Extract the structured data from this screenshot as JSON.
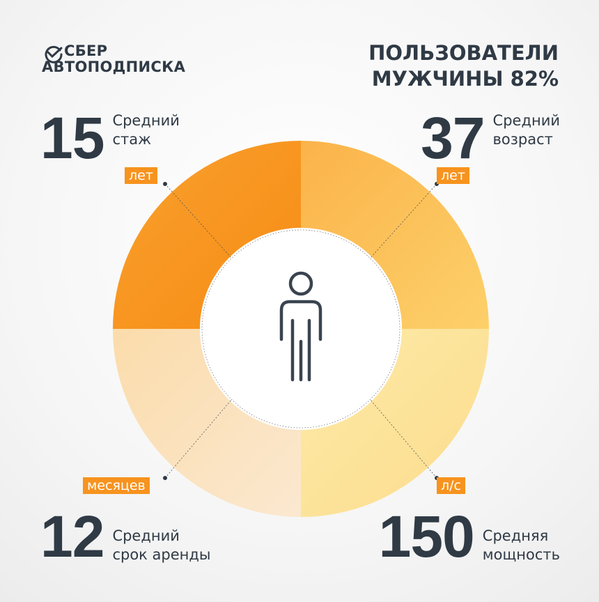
{
  "logo": {
    "line1": "СБЕР",
    "line2": "АВТОПОДПИСКА",
    "icon": "check-circle-icon"
  },
  "headline": {
    "line1": "ПОЛЬЗОВАТЕЛИ",
    "line2": "МУЖЧИНЫ 82%"
  },
  "stats": {
    "experience": {
      "value": "15",
      "label1": "Средний",
      "label2": "стаж",
      "unit": "лет"
    },
    "age": {
      "value": "37",
      "label1": "Средний",
      "label2": "возраст",
      "unit": "лет"
    },
    "rent": {
      "value": "12",
      "label1": "Средний",
      "label2": "срок аренды",
      "unit": "месяцев"
    },
    "power": {
      "value": "150",
      "label1": "Средняя",
      "label2": "мощность",
      "unit": "л/с"
    }
  },
  "colors": {
    "q1": "#f7931e",
    "q2": "#fbb94f",
    "q3": "#fbe3c0",
    "q4": "#fde49c",
    "text": "#2f3a45"
  },
  "center_icon": "person-icon"
}
